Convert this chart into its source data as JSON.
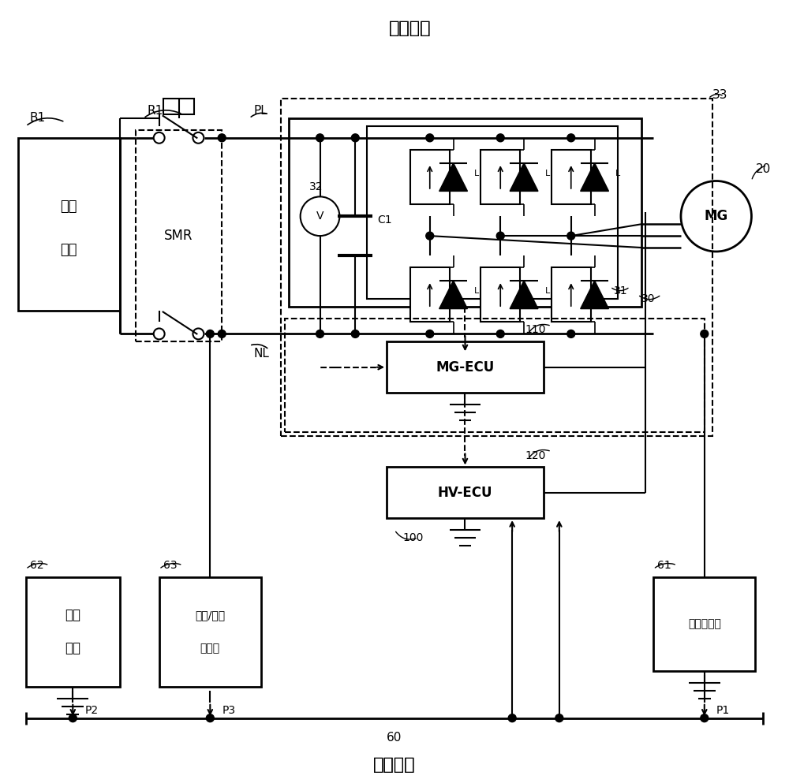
{
  "title_top": "高压系统",
  "title_bottom": "低压系统",
  "bg_color": "#ffffff",
  "line_color": "#000000",
  "font_size_large": 13,
  "font_size_med": 11,
  "font_size_small": 9,
  "labels": {
    "B1": "B1",
    "R1": "R1",
    "PL": "PL",
    "NL": "NL",
    "SMR": "SMR",
    "batt1": "高压",
    "batt2": "电池",
    "32": "32",
    "C1": "C1",
    "31": "31",
    "30": "30",
    "33": "33",
    "20": "20",
    "MG": "MG",
    "110": "110",
    "MG_ECU": "MG-ECU",
    "120": "120",
    "HV_ECU": "HV-ECU",
    "100": "100",
    "62": "62",
    "aux1": "辅助",
    "aux2": "电池",
    "63": "63",
    "dc1": "直流/直流",
    "dc2": "变换器",
    "61": "61",
    "ac_gen": "交流发电机",
    "P1": "P1",
    "P2": "P2",
    "P3": "P3",
    "60": "60",
    "V": "V",
    "L": "L"
  }
}
